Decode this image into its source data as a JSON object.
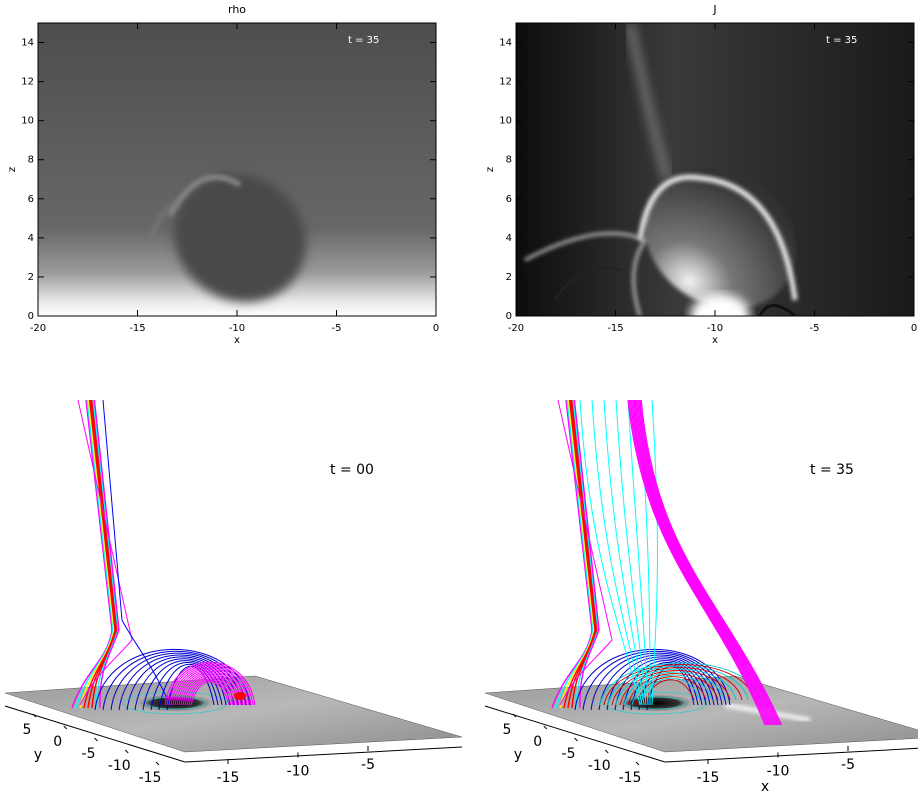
{
  "chart_data": [
    {
      "type": "image",
      "title": "rho",
      "annotation": "t = 35",
      "xlabel": "x",
      "ylabel": "z",
      "xlim": [
        -20,
        0
      ],
      "ylim": [
        0,
        15
      ],
      "xticks": [
        -20,
        -15,
        -10,
        -5,
        0
      ],
      "yticks": [
        0,
        2,
        4,
        6,
        8,
        10,
        12,
        14
      ]
    },
    {
      "type": "image",
      "title": "J",
      "annotation": "t = 35",
      "xlabel": "x",
      "ylabel": "z",
      "xlim": [
        -20,
        0
      ],
      "ylim": [
        0,
        15
      ],
      "xticks": [
        -20,
        -15,
        -10,
        -5,
        0
      ],
      "yticks": [
        0,
        2,
        4,
        6,
        8,
        10,
        12,
        14
      ]
    },
    {
      "type": "render3d",
      "annotation": "t = 00",
      "ylabel": "y",
      "xticks": [
        -15,
        -10,
        -5
      ],
      "yticks": [
        5,
        0,
        -5,
        -10,
        -15
      ]
    },
    {
      "type": "render3d",
      "annotation": "t = 35",
      "xlabel": "x",
      "ylabel": "y",
      "xticks": [
        -15,
        -10,
        -5
      ],
      "yticks": [
        5,
        0,
        -5,
        -10,
        -15
      ]
    }
  ]
}
